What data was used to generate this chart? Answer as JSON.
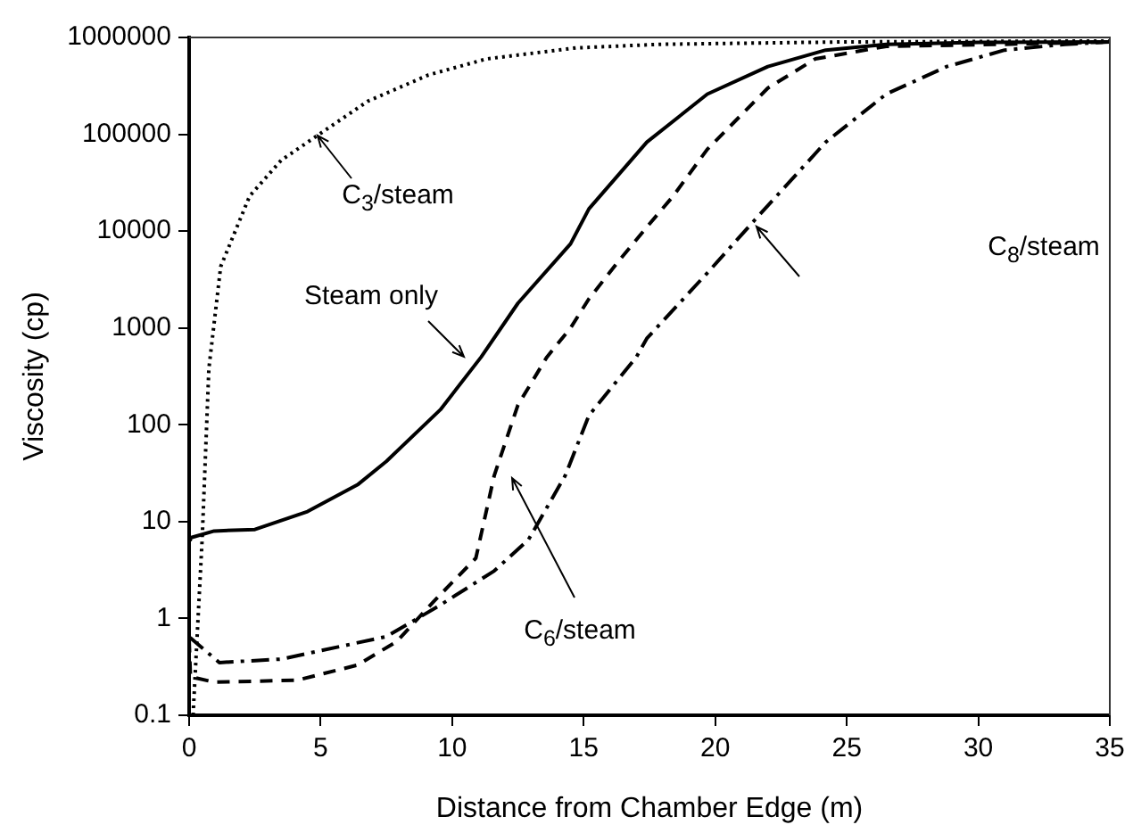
{
  "chart_data": {
    "type": "line",
    "xlabel": "Distance from Chamber Edge (m)",
    "ylabel": "Viscosity (cp)",
    "log": "y",
    "xlim": [
      0,
      35
    ],
    "xticks": [
      0,
      5,
      10,
      15,
      20,
      25,
      30,
      35
    ],
    "ylim": [
      0.1,
      1000000
    ],
    "yticks": [
      0.1,
      1,
      10,
      100,
      1000,
      10000,
      100000,
      1000000
    ],
    "grid": false,
    "legend": false,
    "marker": "none",
    "series": [
      {
        "color": "#000000",
        "line_style": "solid",
        "x": [
          0,
          0.05,
          0.95,
          2.5,
          4.5,
          6.4,
          7.5,
          9.55,
          11.1,
          12.5,
          14.5,
          15.2,
          17.4,
          19.7,
          22,
          24.2,
          26.5,
          30,
          35
        ],
        "values": [
          6.5,
          6.8,
          8,
          8.3,
          12.7,
          24,
          42,
          143,
          500,
          1800,
          7400,
          17000,
          83000,
          260000,
          500000,
          740000,
          850000,
          890000,
          900000
        ]
      },
      {
        "color": "#000000",
        "line_style": "dotted",
        "x": [
          0.15,
          0.5,
          0.75,
          1.2,
          2.3,
          3.5,
          4.9,
          6.8,
          9.1,
          11.3,
          14.7,
          17.9,
          25,
          35
        ],
        "values": [
          0.1,
          7,
          380,
          4300,
          23000,
          54000,
          98000,
          220000,
          410000,
          600000,
          780000,
          850000,
          900000,
          920000
        ]
      },
      {
        "color": "#000000",
        "line_style": "dashed",
        "x": [
          0,
          0.05,
          0.95,
          4.1,
          6.4,
          7.9,
          9.3,
          10.9,
          11.6,
          12.5,
          13.6,
          14.5,
          15.2,
          16.3,
          17.4,
          18.4,
          19.7,
          22,
          23.8,
          26.5,
          31,
          35
        ],
        "values": [
          0.6,
          0.25,
          0.22,
          0.23,
          0.33,
          0.58,
          1.5,
          4.2,
          30,
          160,
          500,
          1000,
          2000,
          4800,
          11000,
          23000,
          70000,
          300000,
          600000,
          810000,
          850000,
          900000
        ]
      },
      {
        "color": "#000000",
        "line_style": "dashdot",
        "x": [
          0,
          0.05,
          1.15,
          3.5,
          7.5,
          9.5,
          11.6,
          12.9,
          14.3,
          15.2,
          17,
          17.4,
          19.7,
          21.5,
          24.2,
          26.5,
          28.8,
          31,
          33.3,
          35
        ],
        "values": [
          0.63,
          0.63,
          0.35,
          0.38,
          0.65,
          1.35,
          3.1,
          6.5,
          30,
          125,
          500,
          780,
          3700,
          13000,
          83000,
          260000,
          500000,
          740000,
          850000,
          900000
        ]
      }
    ],
    "annotations": [
      "C$_{3}$/steam",
      "Steam only",
      "C$_{6}$/steam",
      "C$_{8}$/steam"
    ]
  }
}
